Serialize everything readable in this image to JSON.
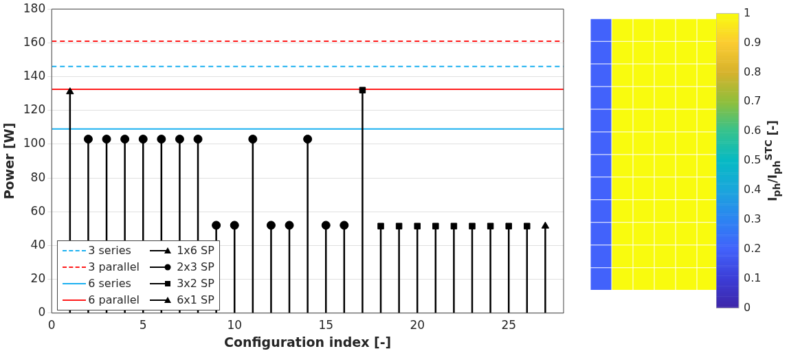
{
  "chart_data": [
    {
      "type": "lollipop",
      "xlabel": "Configuration index [-]",
      "ylabel": "Power [W]",
      "xlim": [
        0,
        28
      ],
      "xticks": [
        0,
        5,
        10,
        15,
        20,
        25
      ],
      "ylim": [
        0,
        180
      ],
      "yticks": [
        0,
        20,
        40,
        60,
        80,
        100,
        120,
        140,
        160,
        180
      ],
      "grid": "y",
      "legend": "bottom left",
      "series": [
        {
          "name": "1x6 SP",
          "color": "#000000",
          "marker": "triangle",
          "x": [
            1
          ],
          "values": [
            131
          ]
        },
        {
          "name": "2x3 SP",
          "color": "#000000",
          "marker": "circle",
          "x": [
            2,
            3,
            4,
            5,
            6,
            7,
            8,
            9,
            10,
            11,
            12,
            13,
            14,
            15,
            16
          ],
          "values": [
            103,
            103,
            103,
            103,
            103,
            103,
            103,
            52,
            52,
            103,
            52,
            52,
            103,
            52,
            52
          ]
        },
        {
          "name": "3x2 SP",
          "color": "#000000",
          "marker": "square",
          "x": [
            17,
            18,
            19,
            20,
            21,
            22,
            23,
            24,
            25,
            26
          ],
          "values": [
            132,
            51.5,
            51.5,
            51.5,
            51.5,
            51.5,
            51.5,
            51.5,
            51.5,
            51.5
          ]
        },
        {
          "name": "6x1 SP",
          "color": "#000000",
          "marker": "triangle",
          "x": [
            27
          ],
          "values": [
            51.5
          ]
        }
      ],
      "ref_lines": [
        {
          "axis": "y",
          "value": 146,
          "label": "3 series",
          "color": "#1ab0f0",
          "line_style": "dashed"
        },
        {
          "axis": "y",
          "value": 161,
          "label": "3 parallel",
          "color": "#ff1a1a",
          "line_style": "dashed"
        },
        {
          "axis": "y",
          "value": 109,
          "label": "6 series",
          "color": "#1ab0f0",
          "line_style": "solid"
        },
        {
          "axis": "y",
          "value": 132.5,
          "label": "6 parallel",
          "color": "#ff1a1a",
          "line_style": "solid"
        }
      ]
    },
    {
      "type": "heatmap",
      "categories": [
        null,
        null,
        null,
        null,
        null,
        null
      ],
      "y_categories": [
        null,
        null,
        null,
        null,
        null,
        null,
        null,
        null,
        null,
        null,
        null,
        null
      ],
      "cells": [
        [
          0.2,
          1,
          1,
          1,
          1,
          1
        ],
        [
          0.2,
          1,
          1,
          1,
          1,
          1
        ],
        [
          0.2,
          1,
          1,
          1,
          1,
          1
        ],
        [
          0.2,
          1,
          1,
          1,
          1,
          1
        ],
        [
          0.2,
          1,
          1,
          1,
          1,
          1
        ],
        [
          0.2,
          1,
          1,
          1,
          1,
          1
        ],
        [
          0.2,
          1,
          1,
          1,
          1,
          1
        ],
        [
          0.2,
          1,
          1,
          1,
          1,
          1
        ],
        [
          0.2,
          1,
          1,
          1,
          1,
          1
        ],
        [
          0.2,
          1,
          1,
          1,
          1,
          1
        ],
        [
          0.2,
          1,
          1,
          1,
          1,
          1
        ],
        [
          0.2,
          1,
          1,
          1,
          1,
          1
        ]
      ],
      "clim": [
        0,
        1
      ],
      "cticks": [
        0,
        0.1,
        0.2,
        0.3,
        0.4,
        0.5,
        0.6,
        0.7,
        0.8,
        0.9,
        1
      ],
      "clabel": "I$_{ph}$/I$_{ph}$$^{STC}$ [-]"
    }
  ]
}
